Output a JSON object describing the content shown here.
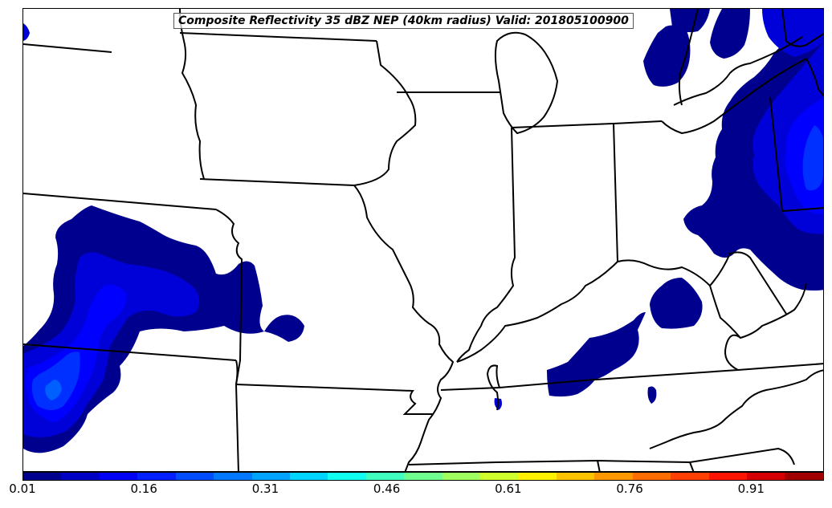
{
  "title": "Composite Reflectivity 35 dBZ NEP (40km radius) Valid: 201805100900",
  "colorbar": {
    "colors": [
      "#00008f",
      "#0000c4",
      "#0000f5",
      "#0020ff",
      "#004cff",
      "#0078ff",
      "#00a4ff",
      "#00d4ff",
      "#10fff0",
      "#40ffbf",
      "#70ff8e",
      "#a0ff5e",
      "#d0ff2e",
      "#fff000",
      "#ffc400",
      "#ff9800",
      "#ff6c00",
      "#ff4000",
      "#ff1400",
      "#d60000",
      "#a00000"
    ],
    "tick_labels": [
      "0.01",
      "0.16",
      "0.31",
      "0.46",
      "0.61",
      "0.76",
      "0.91"
    ],
    "range": [
      0.01,
      1.0
    ]
  },
  "fill_colors": {
    "low": "#00008f",
    "mid": "#0000d8",
    "high": "#0000ff",
    "higher": "#0030ff",
    "highest": "#0060ff",
    "peak": "#2a8cff"
  }
}
